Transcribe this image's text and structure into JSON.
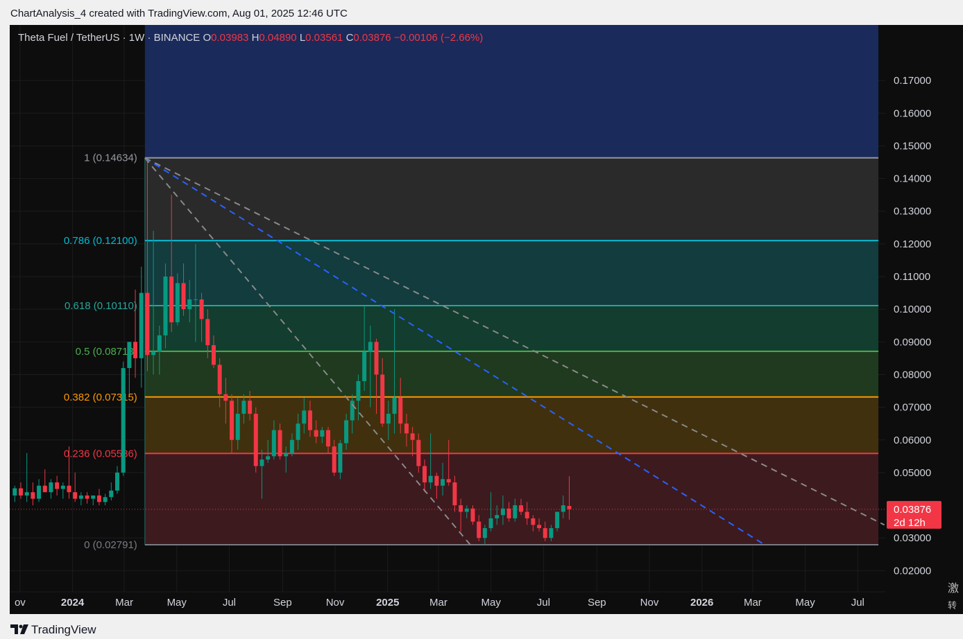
{
  "header": {
    "title": "ChartAnalysis_4 created with TradingView.com, Aug 01, 2025 12:46 UTC"
  },
  "legend": {
    "symbol": "Theta Fuel / TetherUS · 1W · BINANCE",
    "o_label": "O",
    "o_value": "0.03983",
    "h_label": "H",
    "h_value": "0.04890",
    "l_label": "L",
    "l_value": "0.03561",
    "c_label": "C",
    "c_value": "0.03876",
    "change": "−0.00106 (−2.66%)"
  },
  "footer": {
    "brand": "TradingView"
  },
  "cjk_overlay": [
    "激",
    "转"
  ],
  "colors": {
    "background": "#0d0d0d",
    "up": "#089981",
    "down": "#f23645",
    "price_label_bg": "#f23645"
  },
  "chart_data": {
    "type": "candlestick",
    "symbol": "THETA FUEL / USDT",
    "timeframe": "1W",
    "exchange": "BINANCE",
    "y_axis": {
      "ylim": [
        0.0135,
        0.187
      ],
      "ticks": [
        "0.17000",
        "0.16000",
        "0.15000",
        "0.14000",
        "0.13000",
        "0.12000",
        "0.11000",
        "0.10000",
        "0.09000",
        "0.08000",
        "0.07000",
        "0.06000",
        "0.05000",
        "0.03000",
        "0.02000"
      ]
    },
    "x_axis": {
      "labels": [
        {
          "text": "ov",
          "date": "2023-11-01",
          "bold": false
        },
        {
          "text": "2024",
          "date": "2024-01-01",
          "bold": true
        },
        {
          "text": "Mar",
          "date": "2024-03-01",
          "bold": false
        },
        {
          "text": "May",
          "date": "2024-05-01",
          "bold": false
        },
        {
          "text": "Jul",
          "date": "2024-07-01",
          "bold": false
        },
        {
          "text": "Sep",
          "date": "2024-09-01",
          "bold": false
        },
        {
          "text": "Nov",
          "date": "2024-11-01",
          "bold": false
        },
        {
          "text": "2025",
          "date": "2025-01-01",
          "bold": true
        },
        {
          "text": "Mar",
          "date": "2025-03-01",
          "bold": false
        },
        {
          "text": "May",
          "date": "2025-05-01",
          "bold": false
        },
        {
          "text": "Jul",
          "date": "2025-07-01",
          "bold": false
        },
        {
          "text": "Sep",
          "date": "2025-09-01",
          "bold": false
        },
        {
          "text": "Nov",
          "date": "2025-11-01",
          "bold": false
        },
        {
          "text": "2026",
          "date": "2026-01-01",
          "bold": true
        },
        {
          "text": "Mar",
          "date": "2026-03-01",
          "bold": false
        },
        {
          "text": "May",
          "date": "2026-05-01",
          "bold": false
        },
        {
          "text": "Jul",
          "date": "2026-07-01",
          "bold": false
        }
      ],
      "range": [
        "2023-10-20",
        "2026-08-02"
      ]
    },
    "last_price": {
      "value": 0.03876,
      "label": "0.03876",
      "countdown": "2d 12h"
    },
    "fibonacci": {
      "start_date": "2024-03-25",
      "end_date": "2026-07-25",
      "levels": [
        {
          "label": "1 (0.14634)",
          "value": 0.14634,
          "color": "#9598a1",
          "fill": "#2a2a2a"
        },
        {
          "label": "0.786 (0.12100)",
          "value": 0.121,
          "color": "#00bcd4",
          "fill": "#123c3e"
        },
        {
          "label": "0.618 (0.10110)",
          "value": 0.1011,
          "color": "#26a69a",
          "fill": "#133d2e"
        },
        {
          "label": "0.5 (0.08713)",
          "value": 0.08713,
          "color": "#4caf50",
          "fill": "#1f3a1e"
        },
        {
          "label": "0.382 (0.07315)",
          "value": 0.07315,
          "color": "#ff9800",
          "fill": "#40300e"
        },
        {
          "label": "0.236 (0.05586)",
          "value": 0.05586,
          "color": "#f23645",
          "fill": "#3d1a1e"
        },
        {
          "label": "0 (0.02791)",
          "value": 0.02791,
          "color": "#787b86",
          "fill": null
        }
      ],
      "top_fill": "#1a2a5a"
    },
    "trend_lines": [
      {
        "from": {
          "date": "2024-03-25",
          "value": 0.1463
        },
        "to": {
          "date": "2025-04-07",
          "value": 0.0279
        },
        "color": "#8a8a8a",
        "style": "dashed"
      },
      {
        "from": {
          "date": "2024-03-25",
          "value": 0.1463
        },
        "to": {
          "date": "2026-03-15",
          "value": 0.0279
        },
        "color": "#2962ff",
        "style": "dashed"
      },
      {
        "from": {
          "date": "2024-03-25",
          "value": 0.1463
        },
        "to": {
          "date": "2026-08-01",
          "value": 0.034
        },
        "color": "#8a8a8a",
        "style": "dashed"
      }
    ],
    "candles": [
      {
        "t": "2023-10-23",
        "o": 0.043,
        "h": 0.046,
        "l": 0.041,
        "c": 0.0452
      },
      {
        "t": "2023-10-30",
        "o": 0.0452,
        "h": 0.047,
        "l": 0.042,
        "c": 0.043
      },
      {
        "t": "2023-11-06",
        "o": 0.043,
        "h": 0.056,
        "l": 0.041,
        "c": 0.044
      },
      {
        "t": "2023-11-13",
        "o": 0.044,
        "h": 0.047,
        "l": 0.04,
        "c": 0.042
      },
      {
        "t": "2023-11-20",
        "o": 0.042,
        "h": 0.048,
        "l": 0.041,
        "c": 0.046
      },
      {
        "t": "2023-11-27",
        "o": 0.046,
        "h": 0.051,
        "l": 0.044,
        "c": 0.044
      },
      {
        "t": "2023-12-04",
        "o": 0.044,
        "h": 0.048,
        "l": 0.042,
        "c": 0.047
      },
      {
        "t": "2023-12-11",
        "o": 0.047,
        "h": 0.049,
        "l": 0.043,
        "c": 0.045
      },
      {
        "t": "2023-12-18",
        "o": 0.045,
        "h": 0.047,
        "l": 0.042,
        "c": 0.046
      },
      {
        "t": "2023-12-25",
        "o": 0.046,
        "h": 0.058,
        "l": 0.042,
        "c": 0.044
      },
      {
        "t": "2024-01-01",
        "o": 0.044,
        "h": 0.05,
        "l": 0.041,
        "c": 0.042
      },
      {
        "t": "2024-01-08",
        "o": 0.042,
        "h": 0.044,
        "l": 0.04,
        "c": 0.043
      },
      {
        "t": "2024-01-15",
        "o": 0.043,
        "h": 0.044,
        "l": 0.0405,
        "c": 0.042
      },
      {
        "t": "2024-01-22",
        "o": 0.042,
        "h": 0.043,
        "l": 0.04,
        "c": 0.043
      },
      {
        "t": "2024-01-29",
        "o": 0.043,
        "h": 0.045,
        "l": 0.04,
        "c": 0.041
      },
      {
        "t": "2024-02-05",
        "o": 0.041,
        "h": 0.0435,
        "l": 0.04,
        "c": 0.0425
      },
      {
        "t": "2024-02-12",
        "o": 0.0425,
        "h": 0.047,
        "l": 0.0415,
        "c": 0.0445
      },
      {
        "t": "2024-02-19",
        "o": 0.0445,
        "h": 0.052,
        "l": 0.0435,
        "c": 0.05
      },
      {
        "t": "2024-02-26",
        "o": 0.05,
        "h": 0.084,
        "l": 0.049,
        "c": 0.082
      },
      {
        "t": "2024-03-04",
        "o": 0.082,
        "h": 0.09,
        "l": 0.074,
        "c": 0.09
      },
      {
        "t": "2024-03-11",
        "o": 0.09,
        "h": 0.106,
        "l": 0.079,
        "c": 0.085
      },
      {
        "t": "2024-03-18",
        "o": 0.085,
        "h": 0.113,
        "l": 0.076,
        "c": 0.105
      },
      {
        "t": "2024-03-25",
        "o": 0.105,
        "h": 0.1463,
        "l": 0.081,
        "c": 0.086
      },
      {
        "t": "2024-04-01",
        "o": 0.086,
        "h": 0.124,
        "l": 0.08,
        "c": 0.087
      },
      {
        "t": "2024-04-08",
        "o": 0.087,
        "h": 0.095,
        "l": 0.08,
        "c": 0.092
      },
      {
        "t": "2024-04-15",
        "o": 0.092,
        "h": 0.114,
        "l": 0.088,
        "c": 0.11
      },
      {
        "t": "2024-04-22",
        "o": 0.11,
        "h": 0.135,
        "l": 0.093,
        "c": 0.096
      },
      {
        "t": "2024-04-29",
        "o": 0.096,
        "h": 0.111,
        "l": 0.095,
        "c": 0.108
      },
      {
        "t": "2024-05-06",
        "o": 0.108,
        "h": 0.114,
        "l": 0.098,
        "c": 0.1
      },
      {
        "t": "2024-05-13",
        "o": 0.1,
        "h": 0.109,
        "l": 0.096,
        "c": 0.103
      },
      {
        "t": "2024-05-20",
        "o": 0.103,
        "h": 0.12,
        "l": 0.09,
        "c": 0.103
      },
      {
        "t": "2024-05-27",
        "o": 0.103,
        "h": 0.105,
        "l": 0.09,
        "c": 0.097
      },
      {
        "t": "2024-06-03",
        "o": 0.097,
        "h": 0.1,
        "l": 0.085,
        "c": 0.089
      },
      {
        "t": "2024-06-10",
        "o": 0.089,
        "h": 0.092,
        "l": 0.082,
        "c": 0.083
      },
      {
        "t": "2024-06-17",
        "o": 0.083,
        "h": 0.085,
        "l": 0.07,
        "c": 0.074
      },
      {
        "t": "2024-06-24",
        "o": 0.074,
        "h": 0.079,
        "l": 0.065,
        "c": 0.072
      },
      {
        "t": "2024-07-01",
        "o": 0.072,
        "h": 0.074,
        "l": 0.056,
        "c": 0.06
      },
      {
        "t": "2024-07-08",
        "o": 0.06,
        "h": 0.073,
        "l": 0.057,
        "c": 0.068
      },
      {
        "t": "2024-07-15",
        "o": 0.068,
        "h": 0.074,
        "l": 0.065,
        "c": 0.072
      },
      {
        "t": "2024-07-22",
        "o": 0.072,
        "h": 0.075,
        "l": 0.066,
        "c": 0.068
      },
      {
        "t": "2024-07-29",
        "o": 0.068,
        "h": 0.07,
        "l": 0.05,
        "c": 0.052
      },
      {
        "t": "2024-08-05",
        "o": 0.052,
        "h": 0.057,
        "l": 0.042,
        "c": 0.054
      },
      {
        "t": "2024-08-12",
        "o": 0.054,
        "h": 0.06,
        "l": 0.053,
        "c": 0.055
      },
      {
        "t": "2024-08-19",
        "o": 0.055,
        "h": 0.066,
        "l": 0.054,
        "c": 0.063
      },
      {
        "t": "2024-08-26",
        "o": 0.063,
        "h": 0.065,
        "l": 0.054,
        "c": 0.055
      },
      {
        "t": "2024-09-02",
        "o": 0.055,
        "h": 0.058,
        "l": 0.05,
        "c": 0.056
      },
      {
        "t": "2024-09-09",
        "o": 0.056,
        "h": 0.062,
        "l": 0.055,
        "c": 0.06
      },
      {
        "t": "2024-09-16",
        "o": 0.06,
        "h": 0.068,
        "l": 0.057,
        "c": 0.065
      },
      {
        "t": "2024-09-23",
        "o": 0.065,
        "h": 0.073,
        "l": 0.062,
        "c": 0.069
      },
      {
        "t": "2024-09-30",
        "o": 0.069,
        "h": 0.072,
        "l": 0.061,
        "c": 0.063
      },
      {
        "t": "2024-10-07",
        "o": 0.063,
        "h": 0.066,
        "l": 0.059,
        "c": 0.061
      },
      {
        "t": "2024-10-14",
        "o": 0.061,
        "h": 0.064,
        "l": 0.059,
        "c": 0.063
      },
      {
        "t": "2024-10-21",
        "o": 0.063,
        "h": 0.064,
        "l": 0.056,
        "c": 0.058
      },
      {
        "t": "2024-10-28",
        "o": 0.058,
        "h": 0.06,
        "l": 0.049,
        "c": 0.05
      },
      {
        "t": "2024-11-04",
        "o": 0.05,
        "h": 0.06,
        "l": 0.048,
        "c": 0.059
      },
      {
        "t": "2024-11-11",
        "o": 0.059,
        "h": 0.068,
        "l": 0.057,
        "c": 0.066
      },
      {
        "t": "2024-11-18",
        "o": 0.066,
        "h": 0.074,
        "l": 0.062,
        "c": 0.072
      },
      {
        "t": "2024-11-25",
        "o": 0.072,
        "h": 0.08,
        "l": 0.066,
        "c": 0.078
      },
      {
        "t": "2024-12-02",
        "o": 0.078,
        "h": 0.101,
        "l": 0.075,
        "c": 0.087
      },
      {
        "t": "2024-12-09",
        "o": 0.087,
        "h": 0.095,
        "l": 0.07,
        "c": 0.09
      },
      {
        "t": "2024-12-16",
        "o": 0.09,
        "h": 0.091,
        "l": 0.068,
        "c": 0.08
      },
      {
        "t": "2024-12-23",
        "o": 0.08,
        "h": 0.085,
        "l": 0.064,
        "c": 0.065
      },
      {
        "t": "2024-12-30",
        "o": 0.065,
        "h": 0.072,
        "l": 0.06,
        "c": 0.068
      },
      {
        "t": "2025-01-06",
        "o": 0.068,
        "h": 0.1,
        "l": 0.062,
        "c": 0.073
      },
      {
        "t": "2025-01-13",
        "o": 0.073,
        "h": 0.079,
        "l": 0.062,
        "c": 0.065
      },
      {
        "t": "2025-01-20",
        "o": 0.065,
        "h": 0.068,
        "l": 0.058,
        "c": 0.062
      },
      {
        "t": "2025-01-27",
        "o": 0.062,
        "h": 0.064,
        "l": 0.055,
        "c": 0.06
      },
      {
        "t": "2025-02-03",
        "o": 0.06,
        "h": 0.062,
        "l": 0.05,
        "c": 0.052
      },
      {
        "t": "2025-02-10",
        "o": 0.052,
        "h": 0.054,
        "l": 0.044,
        "c": 0.047
      },
      {
        "t": "2025-02-17",
        "o": 0.047,
        "h": 0.062,
        "l": 0.045,
        "c": 0.049
      },
      {
        "t": "2025-02-24",
        "o": 0.049,
        "h": 0.05,
        "l": 0.042,
        "c": 0.046
      },
      {
        "t": "2025-03-03",
        "o": 0.046,
        "h": 0.053,
        "l": 0.043,
        "c": 0.048
      },
      {
        "t": "2025-03-10",
        "o": 0.048,
        "h": 0.06,
        "l": 0.046,
        "c": 0.047
      },
      {
        "t": "2025-03-17",
        "o": 0.047,
        "h": 0.049,
        "l": 0.038,
        "c": 0.04
      },
      {
        "t": "2025-03-24",
        "o": 0.04,
        "h": 0.042,
        "l": 0.032,
        "c": 0.038
      },
      {
        "t": "2025-03-31",
        "o": 0.038,
        "h": 0.04,
        "l": 0.036,
        "c": 0.039
      },
      {
        "t": "2025-04-07",
        "o": 0.039,
        "h": 0.04,
        "l": 0.034,
        "c": 0.035
      },
      {
        "t": "2025-04-14",
        "o": 0.035,
        "h": 0.037,
        "l": 0.029,
        "c": 0.03
      },
      {
        "t": "2025-04-21",
        "o": 0.03,
        "h": 0.034,
        "l": 0.0279,
        "c": 0.033
      },
      {
        "t": "2025-04-28",
        "o": 0.033,
        "h": 0.044,
        "l": 0.032,
        "c": 0.036
      },
      {
        "t": "2025-05-05",
        "o": 0.036,
        "h": 0.04,
        "l": 0.034,
        "c": 0.037
      },
      {
        "t": "2025-05-12",
        "o": 0.037,
        "h": 0.043,
        "l": 0.034,
        "c": 0.039
      },
      {
        "t": "2025-05-19",
        "o": 0.039,
        "h": 0.041,
        "l": 0.035,
        "c": 0.036
      },
      {
        "t": "2025-05-26",
        "o": 0.036,
        "h": 0.042,
        "l": 0.035,
        "c": 0.04
      },
      {
        "t": "2025-06-02",
        "o": 0.04,
        "h": 0.042,
        "l": 0.037,
        "c": 0.038
      },
      {
        "t": "2025-06-09",
        "o": 0.038,
        "h": 0.041,
        "l": 0.034,
        "c": 0.036
      },
      {
        "t": "2025-06-16",
        "o": 0.036,
        "h": 0.037,
        "l": 0.032,
        "c": 0.034
      },
      {
        "t": "2025-06-23",
        "o": 0.034,
        "h": 0.036,
        "l": 0.032,
        "c": 0.033
      },
      {
        "t": "2025-06-30",
        "o": 0.033,
        "h": 0.035,
        "l": 0.029,
        "c": 0.03
      },
      {
        "t": "2025-07-07",
        "o": 0.03,
        "h": 0.034,
        "l": 0.029,
        "c": 0.033
      },
      {
        "t": "2025-07-14",
        "o": 0.033,
        "h": 0.038,
        "l": 0.032,
        "c": 0.038
      },
      {
        "t": "2025-07-21",
        "o": 0.038,
        "h": 0.043,
        "l": 0.036,
        "c": 0.04
      },
      {
        "t": "2025-07-28",
        "o": 0.0398,
        "h": 0.0489,
        "l": 0.0356,
        "c": 0.0388
      }
    ]
  }
}
